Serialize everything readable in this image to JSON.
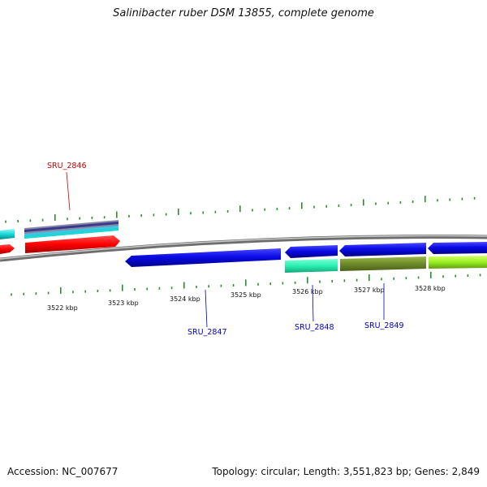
{
  "title": "Salinibacter ruber DSM 13855, complete genome",
  "footer": {
    "accession": "Accession: NC_007677",
    "summary": "Topology: circular; Length: 3,551,823 bp; Genes: 2,849"
  },
  "scale": {
    "ticks": [
      {
        "label": "3522 kbp"
      },
      {
        "label": "3523 kbp"
      },
      {
        "label": "3524 kbp"
      },
      {
        "label": "3525 kbp"
      },
      {
        "label": "3526 kbp"
      },
      {
        "label": "3527 kbp"
      },
      {
        "label": "3528 kbp"
      }
    ]
  },
  "genes": [
    {
      "label": "SRU_2846",
      "color": "#cc0000"
    },
    {
      "label": "SRU_2847",
      "color": "#0000bb"
    },
    {
      "label": "SRU_2848",
      "color": "#0000bb"
    },
    {
      "label": "SRU_2849",
      "color": "#0000bb"
    }
  ],
  "colors": {
    "backbone": "#888888",
    "cds_blue": "#0a0ae6",
    "cds_red": "#ff0000",
    "tick_green": "#2e8b2e",
    "cyan": "#18d8d8",
    "aqua_green": "#2af0b0",
    "olive": "#6e8b2a",
    "lime": "#99ee22"
  }
}
